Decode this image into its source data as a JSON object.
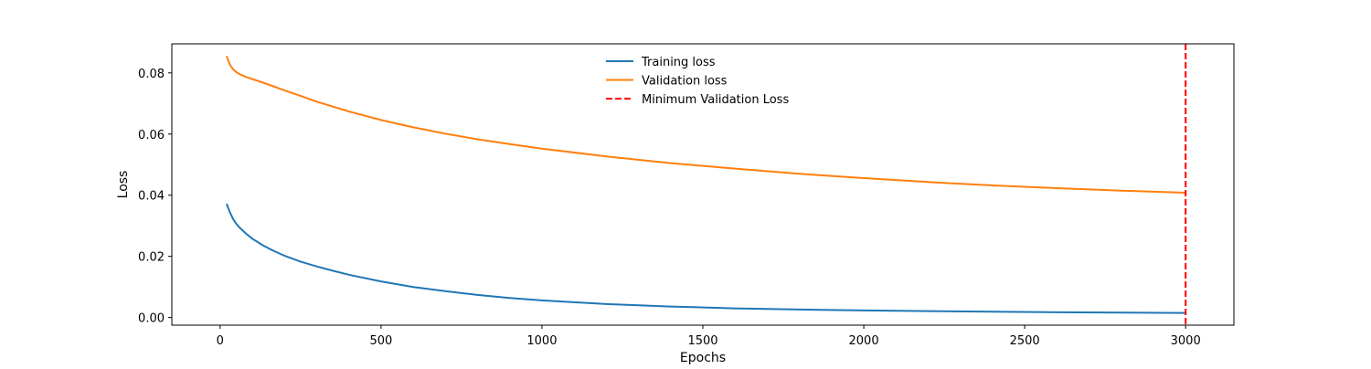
{
  "chart_data": {
    "type": "line",
    "title": "",
    "xlabel": "Epochs",
    "ylabel": "Loss",
    "xlim": [
      -150,
      3150
    ],
    "ylim": [
      -0.0025,
      0.0895
    ],
    "xticks": [
      0,
      500,
      1000,
      1500,
      2000,
      2500,
      3000
    ],
    "xtick_labels": [
      "0",
      "500",
      "1000",
      "1500",
      "2000",
      "2500",
      "3000"
    ],
    "yticks": [
      0.0,
      0.02,
      0.04,
      0.06,
      0.08
    ],
    "ytick_labels": [
      "0.00",
      "0.02",
      "0.04",
      "0.06",
      "0.08"
    ],
    "grid": false,
    "legend_position": "upper-center",
    "series": [
      {
        "name": "Training loss",
        "color": "#1f77b4",
        "style": "solid",
        "x": [
          20,
          30,
          40,
          50,
          60,
          80,
          100,
          130,
          160,
          200,
          250,
          300,
          350,
          400,
          500,
          600,
          700,
          800,
          900,
          1000,
          1200,
          1400,
          1600,
          1800,
          2000,
          2200,
          2400,
          2600,
          2800,
          3000
        ],
        "y": [
          0.0372,
          0.0345,
          0.0323,
          0.0307,
          0.0295,
          0.0275,
          0.0258,
          0.0238,
          0.0221,
          0.0202,
          0.0183,
          0.0167,
          0.0153,
          0.014,
          0.0118,
          0.01,
          0.0086,
          0.0074,
          0.0064,
          0.0056,
          0.0044,
          0.0036,
          0.003,
          0.0026,
          0.0023,
          0.0021,
          0.0019,
          0.0017,
          0.0016,
          0.0015
        ]
      },
      {
        "name": "Validation loss",
        "color": "#ff7f0e",
        "style": "solid",
        "x": [
          20,
          25,
          30,
          40,
          50,
          60,
          80,
          100,
          150,
          200,
          250,
          300,
          400,
          500,
          600,
          700,
          800,
          900,
          1000,
          1200,
          1400,
          1600,
          1800,
          2000,
          2200,
          2400,
          2600,
          2800,
          3000
        ],
        "y": [
          0.0855,
          0.0842,
          0.0828,
          0.0812,
          0.0803,
          0.0796,
          0.0787,
          0.078,
          0.0762,
          0.0743,
          0.0725,
          0.0706,
          0.0674,
          0.0646,
          0.0622,
          0.0601,
          0.0583,
          0.0567,
          0.0552,
          0.0527,
          0.0505,
          0.0487,
          0.047,
          0.0456,
          0.0443,
          0.0432,
          0.0423,
          0.0415,
          0.0408
        ]
      }
    ],
    "vlines": [
      {
        "name": "Minimum Validation Loss",
        "x": 3000,
        "color": "#ff0000",
        "style": "dashed"
      }
    ]
  }
}
